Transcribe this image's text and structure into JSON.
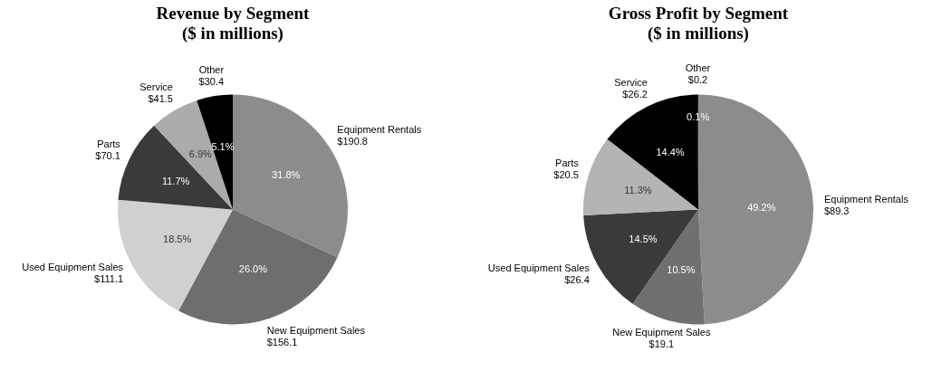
{
  "chart_data": [
    {
      "type": "pie",
      "title": "Revenue by Segment\n($ in millions)",
      "categories": [
        "Equipment Rentals",
        "New Equipment Sales",
        "Used Equipment Sales",
        "Parts",
        "Service",
        "Other"
      ],
      "values": [
        190.8,
        156.1,
        111.1,
        70.1,
        41.5,
        30.4
      ],
      "value_labels": [
        "$190.8",
        "$156.1",
        "$111.1",
        "$70.1",
        "$41.5",
        "$30.4"
      ],
      "colors": [
        "#8c8c8c",
        "#6e6e6e",
        "#d0d0d0",
        "#3a3a3a",
        "#ababab",
        "#000000"
      ],
      "annotations": [
        "31.8%",
        "26.0%",
        "18.5%",
        "11.7%",
        "6.9%",
        "5.1%"
      ]
    },
    {
      "type": "pie",
      "title": "Gross Profit by Segment\n($ in millions)",
      "categories": [
        "Equipment Rentals",
        "New Equipment Sales",
        "Used Equipment Sales",
        "Parts",
        "Service",
        "Other"
      ],
      "values": [
        89.3,
        19.1,
        26.4,
        20.5,
        26.2,
        0.2
      ],
      "value_labels": [
        "$89.3",
        "$19.1",
        "$26.4",
        "$20.5",
        "$26.2",
        "$0.2"
      ],
      "colors": [
        "#8c8c8c",
        "#707070",
        "#3a3a3a",
        "#b4b4b4",
        "#000000",
        "#000000"
      ],
      "annotations": [
        "49.2%",
        "10.5%",
        "14.5%",
        "11.3%",
        "14.4%",
        "0.1%"
      ]
    }
  ]
}
